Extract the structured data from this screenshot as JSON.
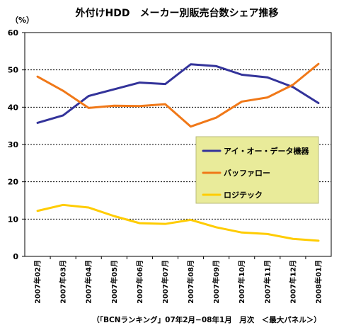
{
  "chart_data": {
    "type": "line",
    "title": "外付けHDD　メーカー別販売台数シェア推移",
    "unit_label": "（%）",
    "source": "（「BCNランキング」07年2月−08年1月　月次　＜最大パネル＞）",
    "categories": [
      "2007年02月",
      "2007年03月",
      "2007年04月",
      "2007年05月",
      "2007年06月",
      "2007年07月",
      "2007年08月",
      "2007年09月",
      "2007年10月",
      "2007年11月",
      "2007年12月",
      "2008年01月"
    ],
    "series": [
      {
        "name": "アイ・オー・データ機器",
        "color": "#33339a",
        "values": [
          35.8,
          37.8,
          43.0,
          44.8,
          46.6,
          46.2,
          51.5,
          51.0,
          48.7,
          48.0,
          45.4,
          41.1
        ]
      },
      {
        "name": "バッファロー",
        "color": "#f07818",
        "values": [
          48.2,
          44.4,
          39.8,
          40.4,
          40.3,
          40.8,
          34.8,
          37.2,
          41.5,
          42.6,
          46.0,
          51.6
        ]
      },
      {
        "name": "ロジテック",
        "color": "#ffcc00",
        "values": [
          12.2,
          13.8,
          13.1,
          10.8,
          8.9,
          8.7,
          9.8,
          7.8,
          6.4,
          6.0,
          4.7,
          4.2
        ]
      }
    ],
    "y_ticks": [
      "0",
      "10",
      "20",
      "30",
      "40",
      "50",
      "60"
    ],
    "ylim": [
      0,
      60
    ],
    "grid": "horizontal dashed",
    "legend_placement": "center-right",
    "legend_background": "#e9eb9a",
    "plot_background": "#ffffff"
  }
}
